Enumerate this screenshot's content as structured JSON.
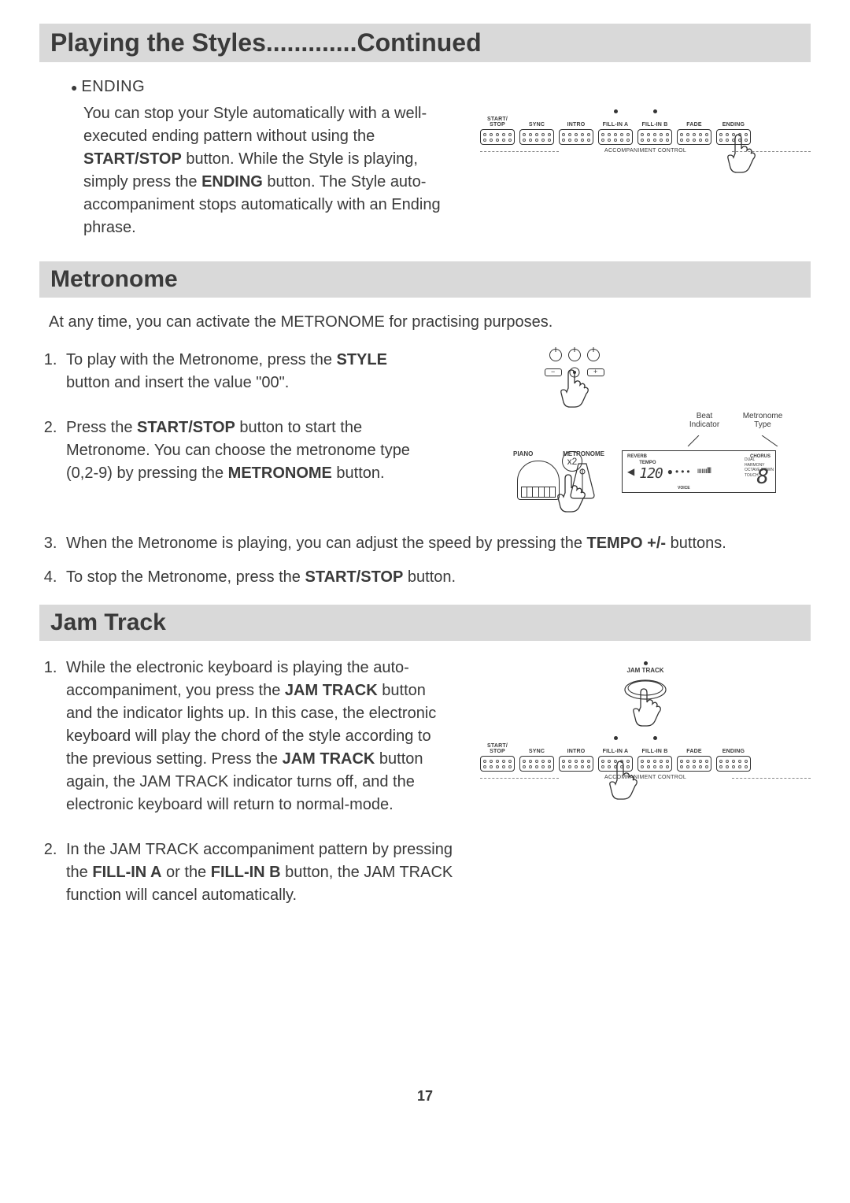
{
  "page_number": "17",
  "section1": {
    "title": "Playing the Styles.............Continued",
    "bullet": {
      "title": "ENDING",
      "body_html": "You can stop your Style automatically with a well-executed ending pattern without using the <b>START/STOP</b> button. While the Style is playing, simply press the <b>ENDING</b> button. The Style auto-accompaniment stops automatically with an Ending phrase."
    },
    "buttons": [
      "START/\nSTOP",
      "SYNC",
      "INTRO",
      "FILL-IN A",
      "FILL-IN B",
      "FADE",
      "ENDING"
    ],
    "accomp_label": "ACCOMPANIMENT CONTROL",
    "led_buttons": [
      "FILL-IN A",
      "FILL-IN B"
    ],
    "hand_on": "ENDING"
  },
  "section2": {
    "title": "Metronome",
    "intro": "At any time, you can activate the METRONOME for practising purposes.",
    "items": [
      "To play with the Metronome, press the <b>STYLE</b> button and insert the value \"00\".",
      "Press the <b>START/STOP</b> button to start the Metronome. You can choose the metronome type (0,2-9) by pressing the <b>METRONOME</b> button.",
      "When the Metronome is playing, you can adjust the speed by pressing the <b>TEMPO +/-</b> buttons.",
      "To stop the Metronome, press the <b>START/STOP</b> button."
    ],
    "diagram": {
      "x2_label": "x2",
      "piano_label": "PIANO",
      "metronome_label": "METRONOME",
      "beat_indicator_label": "Beat\nIndicator",
      "metronome_type_label": "Metronome\nType",
      "lcd": {
        "reverb": "REVERB",
        "chorus": "CHORUS",
        "tempo_label": "TEMPO",
        "tempo_value": "120",
        "voice_label": "VOICE",
        "side_labels": [
          "DUAL",
          "HARMONY",
          "OCTAVE DOWN",
          "TOUCH"
        ],
        "big_char": "8"
      }
    }
  },
  "section3": {
    "title": "Jam Track",
    "items": [
      "While the electronic keyboard is playing the auto-accompaniment, you press the <b>JAM TRACK</b> button and the indicator lights up. In this case, the electronic keyboard will play the chord of the style according to the previous setting. Press the <b>JAM TRACK</b> button again, the JAM TRACK indicator turns off, and the electronic keyboard will return to normal-mode.",
      "In the JAM TRACK accompaniment pattern by pressing the <b>FILL-IN A</b> or the <b>FILL-IN B</b> button, the JAM TRACK function will cancel automatically."
    ],
    "jam_button_label": "JAM TRACK",
    "buttons": [
      "START/\nSTOP",
      "SYNC",
      "INTRO",
      "FILL-IN A",
      "FILL-IN B",
      "FADE",
      "ENDING"
    ],
    "accomp_label": "ACCOMPANIMENT CONTROL",
    "led_buttons": [
      "FILL-IN A",
      "FILL-IN B"
    ],
    "hand_on": "FILL-IN A"
  }
}
